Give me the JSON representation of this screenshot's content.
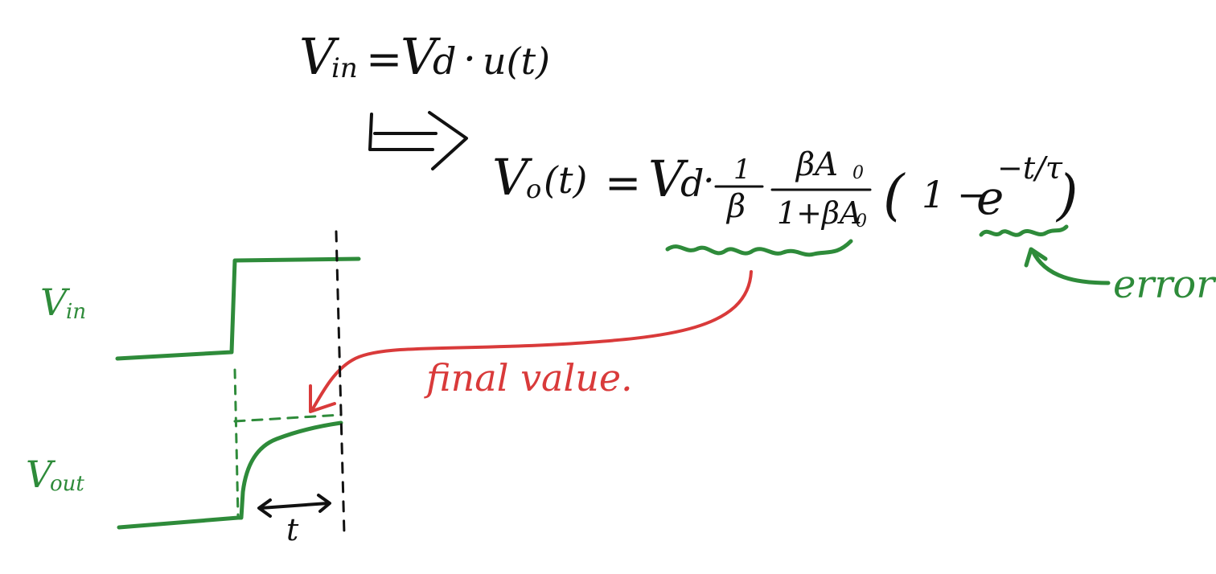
{
  "equations": {
    "vin_def": {
      "v": "V",
      "in_sub": "in",
      "equals": "=",
      "vd_v": "V",
      "vd_sub": "d",
      "dot": "·",
      "step": "u(t)"
    },
    "vo": {
      "lhs_v": "V",
      "lhs_sub": "o",
      "lhs_arg": "(t)",
      "equals": "=",
      "vd_v": "V",
      "vd_sub": "d",
      "dot": "·",
      "frac1_num": "1",
      "frac1_den": "β",
      "frac2_num": "βA",
      "frac2_num_sub": "0",
      "frac2_den": "1+βA",
      "frac2_den_sub": "0",
      "paren_open": "(",
      "one_minus": "1 −",
      "e": "e",
      "exponent": "−t/τ",
      "paren_close": ")"
    }
  },
  "annotations": {
    "final_value": "final value.",
    "error": "error"
  },
  "waveform_labels": {
    "vin_v": "V",
    "vin_sub": "in",
    "vout_v": "V",
    "vout_sub": "out",
    "time_const": "t"
  },
  "colors": {
    "ink": "#111111",
    "green": "#2e8b3a",
    "red": "#d93a3a"
  }
}
